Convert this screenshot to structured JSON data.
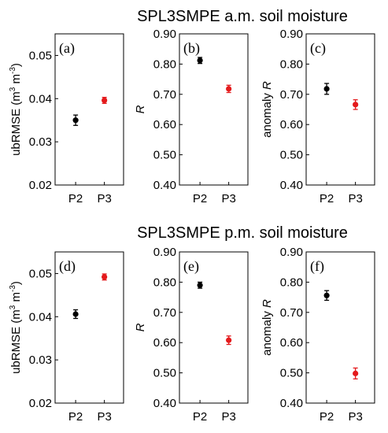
{
  "figure": {
    "row_titles": [
      "SPL3SMPE a.m. soil moisture",
      "SPL3SMPE p.m. soil moisture"
    ],
    "colors": {
      "P2": "#000000",
      "P3": "#e41a1c"
    }
  },
  "chart_data": [
    {
      "type": "scatter",
      "panel_label": "(a)",
      "ylabel": "ubRMSE (m3 m-3)",
      "ylabel_parts": [
        "ubRMSE (m",
        "3",
        " m",
        "-3",
        ")"
      ],
      "categories": [
        "P2",
        "P3"
      ],
      "ylim": [
        0.02,
        0.055
      ],
      "yticks": [
        0.02,
        0.03,
        0.04,
        0.05
      ],
      "ytick_labels": [
        "0.02",
        "0.03",
        "0.04",
        "0.05"
      ],
      "values": [
        0.035,
        0.0396
      ],
      "errors": [
        0.0012,
        0.0007
      ]
    },
    {
      "type": "scatter",
      "panel_label": "(b)",
      "ylabel": "R",
      "categories": [
        "P2",
        "P3"
      ],
      "ylim": [
        0.4,
        0.9
      ],
      "yticks": [
        0.4,
        0.5,
        0.6,
        0.7,
        0.8,
        0.9
      ],
      "ytick_labels": [
        "0.40",
        "0.50",
        "0.60",
        "0.70",
        "0.80",
        "0.90"
      ],
      "values": [
        0.812,
        0.718
      ],
      "errors": [
        0.01,
        0.012
      ]
    },
    {
      "type": "scatter",
      "panel_label": "(c)",
      "ylabel": "anomaly R",
      "ylabel_parts": [
        "anomaly ",
        "R"
      ],
      "categories": [
        "P2",
        "P3"
      ],
      "ylim": [
        0.4,
        0.9
      ],
      "yticks": [
        0.4,
        0.5,
        0.6,
        0.7,
        0.8,
        0.9
      ],
      "ytick_labels": [
        "0.40",
        "0.50",
        "0.60",
        "0.70",
        "0.80",
        "0.90"
      ],
      "values": [
        0.718,
        0.666
      ],
      "errors": [
        0.018,
        0.016
      ]
    },
    {
      "type": "scatter",
      "panel_label": "(d)",
      "ylabel": "ubRMSE (m3 m-3)",
      "ylabel_parts": [
        "ubRMSE (m",
        "3",
        " m",
        "-3",
        ")"
      ],
      "categories": [
        "P2",
        "P3"
      ],
      "ylim": [
        0.02,
        0.055
      ],
      "yticks": [
        0.02,
        0.03,
        0.04,
        0.05
      ],
      "ytick_labels": [
        "0.02",
        "0.03",
        "0.04",
        "0.05"
      ],
      "values": [
        0.0406,
        0.0492
      ],
      "errors": [
        0.001,
        0.0007
      ]
    },
    {
      "type": "scatter",
      "panel_label": "(e)",
      "ylabel": "R",
      "categories": [
        "P2",
        "P3"
      ],
      "ylim": [
        0.4,
        0.9
      ],
      "yticks": [
        0.4,
        0.5,
        0.6,
        0.7,
        0.8,
        0.9
      ],
      "ytick_labels": [
        "0.40",
        "0.50",
        "0.60",
        "0.70",
        "0.80",
        "0.90"
      ],
      "values": [
        0.79,
        0.608
      ],
      "errors": [
        0.01,
        0.014
      ]
    },
    {
      "type": "scatter",
      "panel_label": "(f)",
      "ylabel": "anomaly R",
      "ylabel_parts": [
        "anomaly ",
        "R"
      ],
      "categories": [
        "P2",
        "P3"
      ],
      "ylim": [
        0.4,
        0.9
      ],
      "yticks": [
        0.4,
        0.5,
        0.6,
        0.7,
        0.8,
        0.9
      ],
      "ytick_labels": [
        "0.40",
        "0.50",
        "0.60",
        "0.70",
        "0.80",
        "0.90"
      ],
      "values": [
        0.756,
        0.498
      ],
      "errors": [
        0.016,
        0.018
      ]
    }
  ]
}
